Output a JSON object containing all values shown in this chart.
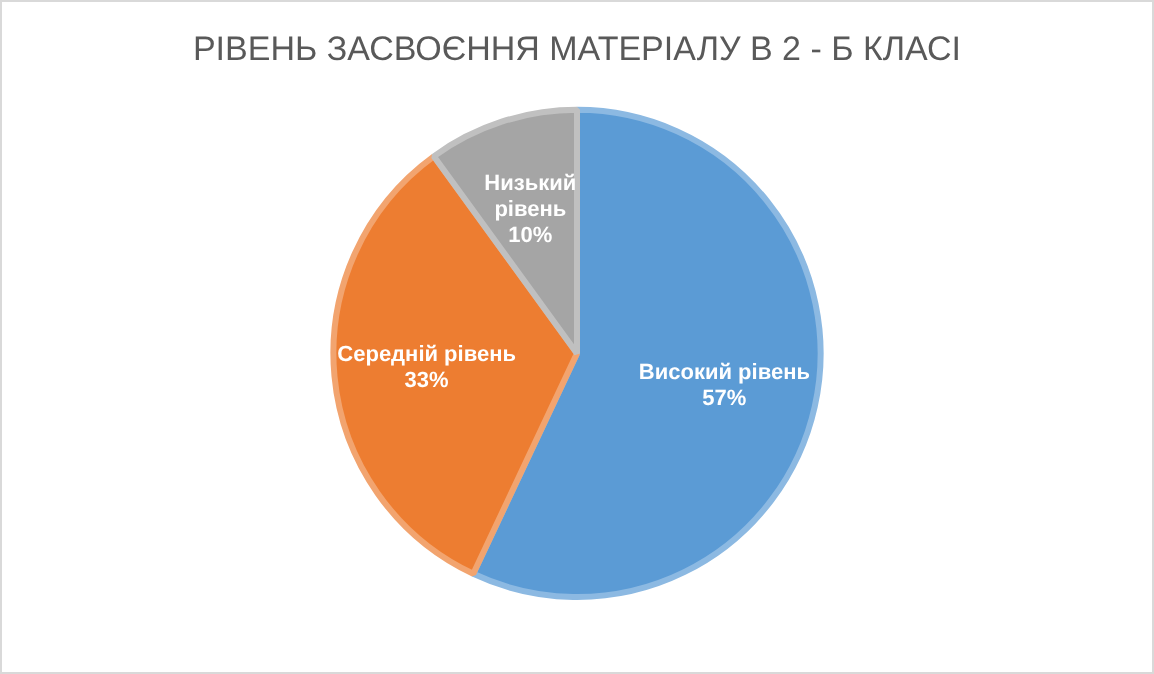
{
  "chart_data": {
    "type": "pie",
    "title": "РІВЕНЬ ЗАСВОЄННЯ МАТЕРІАЛУ В 2 - Б КЛАСІ",
    "categories": [
      "Високий рівень",
      "Середній рівень",
      "Низький рівень"
    ],
    "values": [
      57,
      33,
      10
    ],
    "colors": [
      "#5b9bd5",
      "#ed7d31",
      "#a5a5a5"
    ],
    "value_labels": [
      "57%",
      "33%",
      "10%"
    ],
    "legend": false
  }
}
